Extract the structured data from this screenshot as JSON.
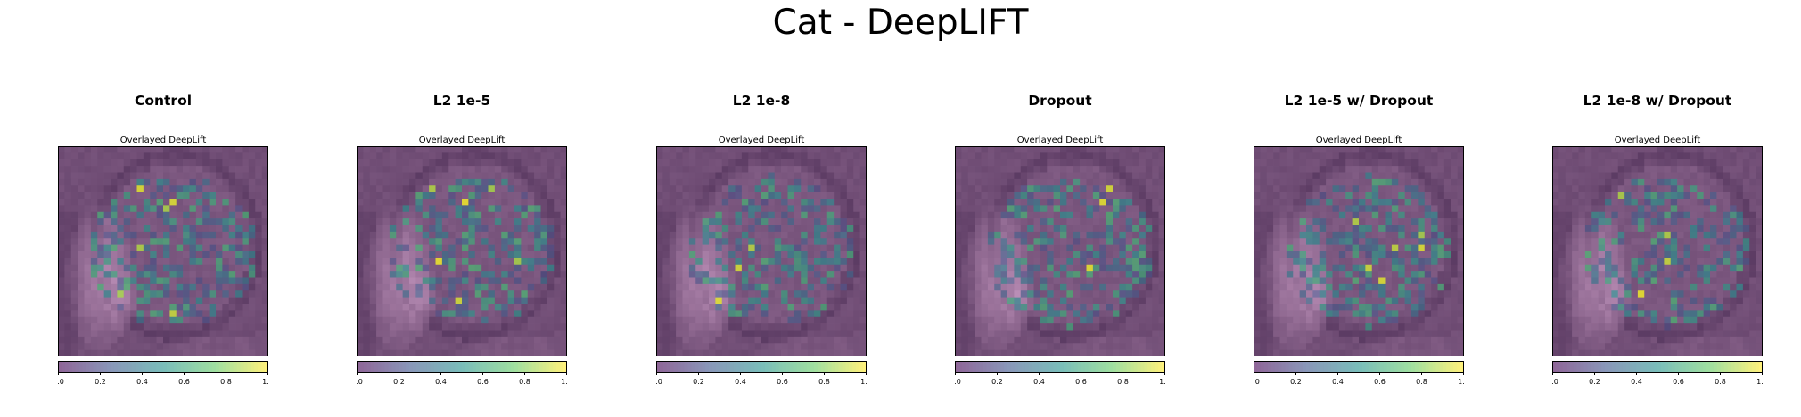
{
  "figure": {
    "title": "Cat - DeepLIFT"
  },
  "chart_data": [
    {
      "type": "heatmap",
      "title": "Control",
      "subtitle": "Overlayed DeepLift",
      "colorbar": {
        "range": [
          0.0,
          1.0
        ],
        "ticks": [
          "0.0",
          "0.2",
          "0.4",
          "0.6",
          "0.8",
          "1.0"
        ],
        "colormap": "viridis"
      },
      "grid": false,
      "resolution": [
        32,
        32
      ]
    },
    {
      "type": "heatmap",
      "title": "L2 1e-5",
      "subtitle": "Overlayed DeepLift",
      "colorbar": {
        "range": [
          0.0,
          1.0
        ],
        "ticks": [
          "0.0",
          "0.2",
          "0.4",
          "0.6",
          "0.8",
          "1.0"
        ],
        "colormap": "viridis"
      },
      "grid": false,
      "resolution": [
        32,
        32
      ]
    },
    {
      "type": "heatmap",
      "title": "L2 1e-8",
      "subtitle": "Overlayed DeepLift",
      "colorbar": {
        "range": [
          0.0,
          1.0
        ],
        "ticks": [
          "0.0",
          "0.2",
          "0.4",
          "0.6",
          "0.8",
          "1.0"
        ],
        "colormap": "viridis"
      },
      "grid": false,
      "resolution": [
        32,
        32
      ]
    },
    {
      "type": "heatmap",
      "title": "Dropout",
      "subtitle": "Overlayed DeepLift",
      "colorbar": {
        "range": [
          0.0,
          1.0
        ],
        "ticks": [
          "0.0",
          "0.2",
          "0.4",
          "0.6",
          "0.8",
          "1.0"
        ],
        "colormap": "viridis"
      },
      "grid": false,
      "resolution": [
        32,
        32
      ]
    },
    {
      "type": "heatmap",
      "title": "L2 1e-5 w/ Dropout",
      "subtitle": "Overlayed DeepLift",
      "colorbar": {
        "range": [
          0.0,
          1.0
        ],
        "ticks": [
          "0.0",
          "0.2",
          "0.4",
          "0.6",
          "0.8",
          "1.0"
        ],
        "colormap": "viridis"
      },
      "grid": false,
      "resolution": [
        32,
        32
      ]
    },
    {
      "type": "heatmap",
      "title": "L2 1e-8 w/ Dropout",
      "subtitle": "Overlayed DeepLift",
      "colorbar": {
        "range": [
          0.0,
          1.0
        ],
        "ticks": [
          "0.0",
          "0.2",
          "0.4",
          "0.6",
          "0.8",
          "1.0"
        ],
        "colormap": "viridis"
      },
      "grid": false,
      "resolution": [
        32,
        32
      ]
    }
  ]
}
